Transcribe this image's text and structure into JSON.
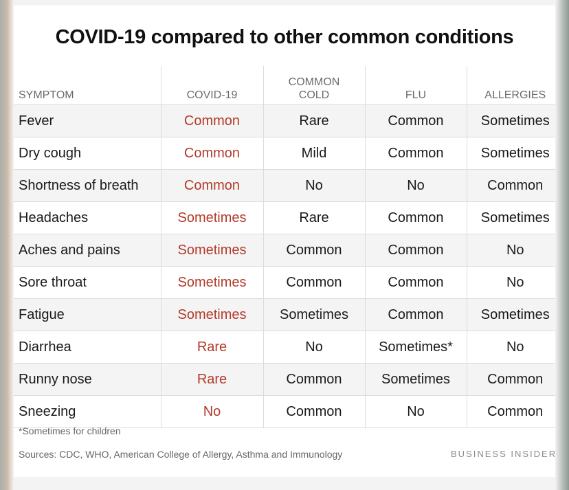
{
  "title": "COVID-19 compared to other common conditions",
  "columns": {
    "symptom": "SYMPTOM",
    "covid": "COVID-19",
    "cold_line1": "COMMON",
    "cold_line2": "COLD",
    "flu": "FLU",
    "allergies": "ALLERGIES"
  },
  "rows": [
    [
      "Fever",
      "Common",
      "Rare",
      "Common",
      "Sometimes"
    ],
    [
      "Dry cough",
      "Common",
      "Mild",
      "Common",
      "Sometimes"
    ],
    [
      "Shortness of breath",
      "Common",
      "No",
      "No",
      "Common"
    ],
    [
      "Headaches",
      "Sometimes",
      "Rare",
      "Common",
      "Sometimes"
    ],
    [
      "Aches and pains",
      "Sometimes",
      "Common",
      "Common",
      "No"
    ],
    [
      "Sore throat",
      "Sometimes",
      "Common",
      "Common",
      "No"
    ],
    [
      "Fatigue",
      "Sometimes",
      "Sometimes",
      "Common",
      "Sometimes"
    ],
    [
      "Diarrhea",
      "Rare",
      "No",
      "Sometimes*",
      "No"
    ],
    [
      "Runny nose",
      "Rare",
      "Common",
      "Sometimes",
      "Common"
    ],
    [
      "Sneezing",
      "No",
      "Common",
      "No",
      "Common"
    ]
  ],
  "footnote": "*Sometimes for children",
  "sources": "Sources: CDC, WHO,  American College of Allergy, Asthma and Immunology",
  "brand": "BUSINESS INSIDER",
  "colors": {
    "covid_accent": "#b33a2a"
  }
}
